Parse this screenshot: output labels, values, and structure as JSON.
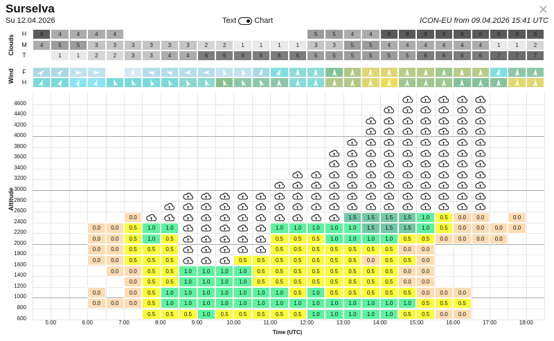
{
  "header": {
    "title": "Surselva",
    "date": "Su 12.04.2026",
    "toggle_left": "Text",
    "toggle_right": "Chart",
    "model": "ICON-EU from 09.04.2026 15:41 UTC",
    "close_icon": "close-icon"
  },
  "clouds": {
    "label": "Clouds",
    "rows": [
      {
        "name": "H",
        "values": [
          "8",
          "4",
          "4",
          "4",
          "4",
          "",
          "",
          "",
          "",
          "",
          "",
          "",
          "",
          "",
          "",
          "5",
          "5",
          "4",
          "4",
          "8",
          "8",
          "8",
          "8",
          "8",
          "8",
          "8",
          "8",
          "8"
        ]
      },
      {
        "name": "M",
        "values": [
          "4",
          "5",
          "5",
          "3",
          "3",
          "3",
          "3",
          "3",
          "3",
          "2",
          "2",
          "1",
          "1",
          "1",
          "1",
          "3",
          "3",
          "5",
          "5",
          "4",
          "4",
          "4",
          "4",
          "4",
          "4",
          "1",
          "1",
          "2"
        ]
      },
      {
        "name": "T",
        "values": [
          "",
          "1",
          "1",
          "2",
          "2",
          "3",
          "3",
          "4",
          "4",
          "6",
          "6",
          "6",
          "6",
          "6",
          "6",
          "5",
          "5",
          "5",
          "5",
          "5",
          "5",
          "6",
          "6",
          "6",
          "6",
          "7",
          "7",
          "7"
        ]
      }
    ],
    "colors": {
      "1": "#e9e9e9",
      "2": "#d6d6d6",
      "3": "#c4c4c4",
      "4": "#acacac",
      "5": "#9c9c9c",
      "6": "#7c7c7c",
      "7": "#6c6c6c",
      "8": "#5a5a5a"
    }
  },
  "wind": {
    "label": "Wind",
    "rows": [
      {
        "name": "F",
        "dirs": [
          45,
          45,
          90,
          90,
          null,
          0,
          285,
          285,
          270,
          270,
          340,
          340,
          20,
          20,
          0,
          0,
          0,
          0,
          0,
          0,
          0,
          0,
          0,
          0,
          0,
          20,
          0,
          0
        ],
        "colors": [
          "#a9d8e8",
          "#a9d8e8",
          "#bfe2ef",
          "#bfe2ef",
          "#ffffff",
          "#d6e8f5",
          "#b4dcea",
          "#b4dcea",
          "#b4dcea",
          "#b4dcea",
          "#c2e2ee",
          "#c2e2ee",
          "#a9d8e8",
          "#7edfe3",
          "#8edcd6",
          "#8edcd6",
          "#84c29a",
          "#b2c886",
          "#dfd674",
          "#dfd674",
          "#b6cc88",
          "#b6cc88",
          "#9fc894",
          "#b6cc88",
          "#b6cc88",
          "#7edfe3",
          "#8cc8a8",
          "#8cc8a8"
        ]
      },
      {
        "name": "H",
        "dirs": [
          20,
          20,
          20,
          20,
          340,
          340,
          340,
          340,
          340,
          340,
          340,
          340,
          340,
          0,
          0,
          0,
          0,
          0,
          0,
          0,
          0,
          0,
          0,
          0,
          0,
          0,
          0,
          0
        ],
        "colors": [
          "#7ad9db",
          "#7ad9db",
          "#8ae4f2",
          "#8ae4f2",
          "#7ad9db",
          "#7ad9db",
          "#7ad9db",
          "#7ad9db",
          "#8cd8d0",
          "#8cd8d0",
          "#86c08e",
          "#8cc6a8",
          "#8cc6a8",
          "#8cc6a8",
          "#86dcd8",
          "#86dcd8",
          "#b2c886",
          "#b2c886",
          "#dfd674",
          "#f0dc5c",
          "#9fc890",
          "#9fc890",
          "#9fc890",
          "#84c29a",
          "#84c29a",
          "#84c29a",
          "#e3d870",
          "#e3d870"
        ]
      }
    ]
  },
  "chart": {
    "y_label": "Altitude",
    "x_label": "Time (UTC)",
    "time_labels": [
      "5:00",
      "6:00",
      "7:00",
      "8:00",
      "9:00",
      "10:00",
      "11:00",
      "12:00",
      "13:00",
      "14:00",
      "15:00",
      "16:00",
      "17:00",
      "18:00"
    ],
    "value_colors": {
      "0.0": "#fddcb4",
      "0.5": "#fbfb3a",
      "1.0": "#5ef2a0",
      "1.5": "#72c9a6"
    },
    "cloud_marker": "c",
    "rows": [
      {
        "alt": "4600",
        "cells": [
          "",
          "",
          "",
          "",
          "",
          "",
          "",
          "",
          "",
          "",
          "",
          "",
          "",
          "",
          "",
          "",
          "",
          "",
          "",
          "",
          "c",
          "c",
          "c",
          "c",
          "c",
          "",
          "",
          ""
        ]
      },
      {
        "alt": "4400",
        "cells": [
          "",
          "",
          "",
          "",
          "",
          "",
          "",
          "",
          "",
          "",
          "",
          "",
          "",
          "",
          "",
          "",
          "",
          "",
          "",
          "c",
          "c",
          "c",
          "c",
          "c",
          "c",
          "",
          "",
          ""
        ]
      },
      {
        "alt": "4200",
        "cells": [
          "",
          "",
          "",
          "",
          "",
          "",
          "",
          "",
          "",
          "",
          "",
          "",
          "",
          "",
          "",
          "",
          "",
          "",
          "c",
          "c",
          "c",
          "c",
          "c",
          "c",
          "c",
          "",
          "",
          ""
        ]
      },
      {
        "alt": "4000",
        "cells": [
          "",
          "",
          "",
          "",
          "",
          "",
          "",
          "",
          "",
          "",
          "",
          "",
          "",
          "",
          "",
          "",
          "",
          "",
          "c",
          "c",
          "c",
          "c",
          "c",
          "c",
          "c",
          "",
          "",
          ""
        ]
      },
      {
        "alt": "3800",
        "cells": [
          "",
          "",
          "",
          "",
          "",
          "",
          "",
          "",
          "",
          "",
          "",
          "",
          "",
          "",
          "",
          "",
          "",
          "c",
          "c",
          "c",
          "c",
          "c",
          "c",
          "c",
          "c",
          "",
          "",
          ""
        ]
      },
      {
        "alt": "3600",
        "cells": [
          "",
          "",
          "",
          "",
          "",
          "",
          "",
          "",
          "",
          "",
          "",
          "",
          "",
          "",
          "",
          "",
          "c",
          "c",
          "c",
          "c",
          "c",
          "c",
          "c",
          "c",
          "c",
          "",
          "",
          ""
        ]
      },
      {
        "alt": "3400",
        "cells": [
          "",
          "",
          "",
          "",
          "",
          "",
          "",
          "",
          "",
          "",
          "",
          "",
          "",
          "",
          "",
          "",
          "c",
          "c",
          "c",
          "c",
          "c",
          "c",
          "c",
          "c",
          "c",
          "",
          "",
          ""
        ]
      },
      {
        "alt": "3200",
        "cells": [
          "",
          "",
          "",
          "",
          "",
          "",
          "",
          "",
          "",
          "",
          "",
          "",
          "",
          "",
          "c",
          "c",
          "c",
          "c",
          "c",
          "c",
          "c",
          "c",
          "c",
          "c",
          "c",
          "",
          "",
          ""
        ]
      },
      {
        "alt": "3000",
        "cells": [
          "",
          "",
          "",
          "",
          "",
          "",
          "",
          "",
          "",
          "",
          "",
          "",
          "",
          "c",
          "c",
          "c",
          "c",
          "c",
          "c",
          "c",
          "c",
          "c",
          "c",
          "c",
          "c",
          "",
          "",
          ""
        ]
      },
      {
        "alt": "2800",
        "cells": [
          "",
          "",
          "",
          "",
          "",
          "",
          "",
          "",
          "c",
          "c",
          "c",
          "c",
          "c",
          "c",
          "c",
          "c",
          "c",
          "c",
          "c",
          "c",
          "c",
          "c",
          "c",
          "c",
          "c",
          "",
          "",
          ""
        ]
      },
      {
        "alt": "2600",
        "cells": [
          "",
          "",
          "",
          "",
          "",
          "",
          "",
          "c",
          "c",
          "c",
          "c",
          "c",
          "c",
          "c",
          "c",
          "c",
          "c",
          "c",
          "c",
          "c",
          "c",
          "c",
          "c",
          "c",
          "c",
          "",
          "",
          ""
        ]
      },
      {
        "alt": "2400",
        "cells": [
          "",
          "",
          "",
          "",
          "",
          "0.0",
          "c",
          "c",
          "c",
          "c",
          "c",
          "c",
          "c",
          "c",
          "c",
          "c",
          "c",
          "1.5",
          "1.5",
          "1.5",
          "1.5",
          "1.0",
          "0.5",
          "0.0",
          "0.0",
          "",
          "0.0",
          ""
        ]
      },
      {
        "alt": "2200",
        "cells": [
          "",
          "",
          "",
          "0.0",
          "0.0",
          "0.5",
          "1.0",
          "1.0",
          "c",
          "c",
          "c",
          "c",
          "c",
          "1.0",
          "1.0",
          "1.0",
          "1.0",
          "1.0",
          "1.5",
          "1.5",
          "1.5",
          "1.0",
          "0.5",
          "0.0",
          "0.0",
          "0.0",
          "0.0",
          ""
        ]
      },
      {
        "alt": "2000",
        "cells": [
          "",
          "",
          "",
          "0.0",
          "0.0",
          "0.5",
          "1.0",
          "0.5",
          "c",
          "c",
          "c",
          "c",
          "c",
          "0.5",
          "0.5",
          "0.5",
          "1.0",
          "1.0",
          "1.0",
          "1.0",
          "0.5",
          "0.5",
          "0.0",
          "0.0",
          "0.0",
          "0.0",
          "",
          ""
        ]
      },
      {
        "alt": "1800",
        "cells": [
          "",
          "",
          "",
          "0.0",
          "0.0",
          "0.5",
          "0.5",
          "0.5",
          "c",
          "c",
          "c",
          "c",
          "c",
          "0.5",
          "0.5",
          "0.5",
          "0.5",
          "0.5",
          "0.5",
          "0.5",
          "0.0",
          "0.0",
          "",
          "",
          "",
          "",
          "",
          ""
        ]
      },
      {
        "alt": "1600",
        "cells": [
          "",
          "",
          "",
          "0.0",
          "0.0",
          "0.5",
          "0.5",
          "0.5",
          "c",
          "c",
          "c",
          "0.5",
          "0.5",
          "0.5",
          "0.5",
          "0.5",
          "0.5",
          "0.5",
          "0.0",
          "0.5",
          "0.5",
          "0.0",
          "",
          "",
          "",
          "",
          "",
          ""
        ]
      },
      {
        "alt": "1400",
        "cells": [
          "",
          "",
          "",
          "",
          "0.0",
          "0.0",
          "0.5",
          "0.5",
          "1.0",
          "1.0",
          "1.0",
          "1.0",
          "0.5",
          "0.5",
          "0.5",
          "0.5",
          "0.5",
          "0.5",
          "0.5",
          "0.5",
          "0.0",
          "0.0",
          "",
          "",
          "",
          "",
          "",
          ""
        ]
      },
      {
        "alt": "1200",
        "cells": [
          "",
          "",
          "",
          "",
          "",
          "0.0",
          "0.5",
          "0.5",
          "1.0",
          "1.0",
          "1.0",
          "1.0",
          "0.5",
          "0.5",
          "0.5",
          "0.5",
          "0.5",
          "0.5",
          "0.5",
          "0.5",
          "0.0",
          "0.0",
          "",
          "",
          "",
          "",
          "",
          ""
        ]
      },
      {
        "alt": "1000",
        "cells": [
          "",
          "",
          "",
          "0.0",
          "",
          "0.0",
          "0.5",
          "1.0",
          "1.0",
          "1.0",
          "1.0",
          "1.0",
          "1.0",
          "1.0",
          "0.5",
          "1.0",
          "0.5",
          "0.5",
          "0.5",
          "0.5",
          "0.5",
          "0.0",
          "0.0",
          "0.0",
          "",
          "",
          "",
          ""
        ]
      },
      {
        "alt": "800",
        "cells": [
          "",
          "",
          "",
          "0.0",
          "0.0",
          "0.0",
          "0.5",
          "1.0",
          "1.0",
          "1.0",
          "1.0",
          "1.0",
          "1.0",
          "1.0",
          "1.0",
          "1.0",
          "1.0",
          "1.0",
          "1.0",
          "1.0",
          "1.0",
          "0.5",
          "0.5",
          "0.5",
          "",
          "",
          "",
          ""
        ]
      },
      {
        "alt": "600",
        "cells": [
          "",
          "",
          "",
          "",
          "",
          "",
          "0.5",
          "0.5",
          "0.5",
          "1.0",
          "0.5",
          "0.5",
          "0.5",
          "0.5",
          "0.5",
          "1.0",
          "1.0",
          "1.0",
          "1.0",
          "1.0",
          "0.5",
          "0.5",
          "0.0",
          "0.0",
          "",
          "",
          "",
          ""
        ]
      }
    ]
  }
}
